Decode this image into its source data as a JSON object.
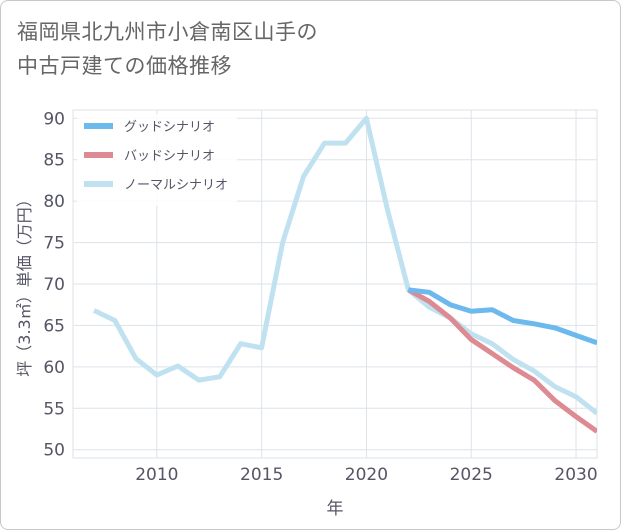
{
  "title_lines": [
    "福岡県北九州市小倉南区山手の",
    "中古戸建ての価格推移"
  ],
  "colors": {
    "good": "#6cb9ee",
    "bad": "#de8a92",
    "normal": "#c0e2f0",
    "axis_text": "#555566",
    "grid": "#dde3ea",
    "title": "#666666"
  },
  "chart_data": {
    "type": "line",
    "xlabel": "年",
    "ylabel": "坪（3.3㎡）単価（万円）",
    "xlim": [
      2006,
      2031
    ],
    "ylim": [
      49,
      91
    ],
    "x_ticks": [
      2010,
      2015,
      2020,
      2025,
      2030
    ],
    "y_ticks": [
      50,
      55,
      60,
      65,
      70,
      75,
      80,
      85,
      90
    ],
    "grid": true,
    "legend_position": "top-left",
    "series": [
      {
        "name": "グッドシナリオ",
        "color": "#6cb9ee",
        "x": [
          2022,
          2023,
          2024,
          2025,
          2026,
          2027,
          2028,
          2029,
          2030,
          2031
        ],
        "y": [
          69.3,
          69.0,
          67.5,
          66.7,
          66.9,
          65.6,
          65.2,
          64.7,
          63.8,
          62.9
        ]
      },
      {
        "name": "バッドシナリオ",
        "color": "#de8a92",
        "x": [
          2022,
          2023,
          2024,
          2025,
          2026,
          2027,
          2028,
          2029,
          2030,
          2031
        ],
        "y": [
          69.3,
          67.9,
          65.9,
          63.3,
          61.6,
          59.9,
          58.4,
          55.9,
          54.0,
          52.2
        ]
      },
      {
        "name": "ノーマルシナリオ",
        "color": "#c0e2f0",
        "x": [
          2007,
          2008,
          2009,
          2010,
          2011,
          2012,
          2013,
          2014,
          2015,
          2016,
          2017,
          2018,
          2019,
          2020,
          2021,
          2022,
          2023,
          2024,
          2025,
          2026,
          2027,
          2028,
          2029,
          2030,
          2031
        ],
        "y": [
          66.8,
          65.6,
          61.0,
          59.0,
          60.1,
          58.4,
          58.8,
          62.8,
          62.3,
          75.0,
          83.0,
          87.0,
          87.0,
          90.0,
          79.0,
          69.3,
          67.2,
          65.9,
          64.0,
          62.8,
          60.9,
          59.5,
          57.6,
          56.4,
          54.4
        ]
      }
    ]
  }
}
